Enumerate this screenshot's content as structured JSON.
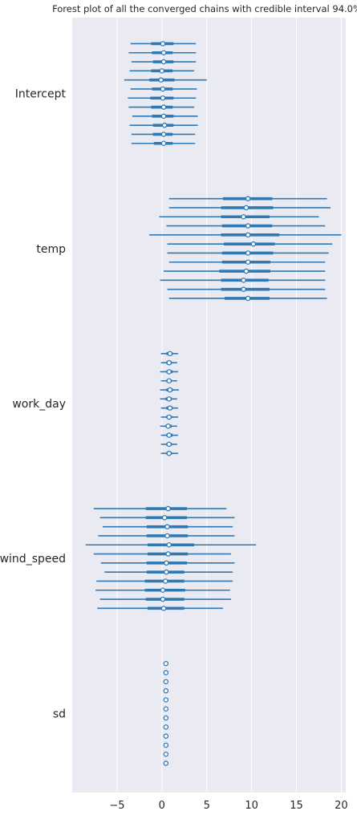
{
  "chart_data": {
    "type": "forest",
    "title": "Forest plot of all the converged chains with credible interval 94.0%",
    "xlabel": "",
    "ylabel": "",
    "xlim": [
      -10,
      20.5
    ],
    "xticks": [
      -5,
      0,
      5,
      10,
      15,
      20
    ],
    "xtick_labels": [
      "−5",
      "0",
      "5",
      "10",
      "15",
      "20"
    ],
    "grid": true,
    "colors": {
      "line": "#2f7ab4",
      "marker_fill": "#ffffff",
      "background": "#eaeaf2",
      "grid": "#ffffff"
    },
    "variables": [
      {
        "name": "Intercept",
        "chains": [
          {
            "hdi94": [
              -3.5,
              3.8
            ],
            "iqr": [
              -1.2,
              1.3
            ],
            "median": 0.1
          },
          {
            "hdi94": [
              -3.7,
              3.8
            ],
            "iqr": [
              -1.1,
              1.2
            ],
            "median": 0.2
          },
          {
            "hdi94": [
              -3.4,
              3.8
            ],
            "iqr": [
              -1.0,
              1.3
            ],
            "median": 0.2
          },
          {
            "hdi94": [
              -3.6,
              3.6
            ],
            "iqr": [
              -1.2,
              1.2
            ],
            "median": 0.0
          },
          {
            "hdi94": [
              -4.2,
              5.0
            ],
            "iqr": [
              -1.4,
              1.4
            ],
            "median": -0.1
          },
          {
            "hdi94": [
              -3.5,
              3.9
            ],
            "iqr": [
              -1.1,
              1.2
            ],
            "median": 0.1
          },
          {
            "hdi94": [
              -3.8,
              3.8
            ],
            "iqr": [
              -1.3,
              1.3
            ],
            "median": 0.1
          },
          {
            "hdi94": [
              -3.7,
              3.6
            ],
            "iqr": [
              -1.2,
              1.2
            ],
            "median": 0.2
          },
          {
            "hdi94": [
              -3.3,
              4.0
            ],
            "iqr": [
              -1.1,
              1.3
            ],
            "median": 0.2
          },
          {
            "hdi94": [
              -3.6,
              4.0
            ],
            "iqr": [
              -1.0,
              1.3
            ],
            "median": 0.3
          },
          {
            "hdi94": [
              -3.4,
              3.7
            ],
            "iqr": [
              -1.0,
              1.2
            ],
            "median": 0.2
          },
          {
            "hdi94": [
              -3.4,
              3.7
            ],
            "iqr": [
              -0.9,
              1.2
            ],
            "median": 0.2
          }
        ]
      },
      {
        "name": "temp",
        "chains": [
          {
            "hdi94": [
              0.8,
              18.4
            ],
            "iqr": [
              6.8,
              12.3
            ],
            "median": 9.6
          },
          {
            "hdi94": [
              0.8,
              18.8
            ],
            "iqr": [
              6.6,
              12.4
            ],
            "median": 9.4
          },
          {
            "hdi94": [
              -0.3,
              17.5
            ],
            "iqr": [
              6.6,
              12.0
            ],
            "median": 9.1
          },
          {
            "hdi94": [
              0.5,
              18.2
            ],
            "iqr": [
              6.7,
              12.3
            ],
            "median": 9.6
          },
          {
            "hdi94": [
              -1.4,
              20.0
            ],
            "iqr": [
              6.6,
              13.1
            ],
            "median": 9.6
          },
          {
            "hdi94": [
              0.6,
              19.0
            ],
            "iqr": [
              6.9,
              12.6
            ],
            "median": 10.2
          },
          {
            "hdi94": [
              0.6,
              18.6
            ],
            "iqr": [
              6.7,
              12.4
            ],
            "median": 9.6
          },
          {
            "hdi94": [
              0.8,
              18.2
            ],
            "iqr": [
              6.7,
              12.1
            ],
            "median": 9.6
          },
          {
            "hdi94": [
              0.2,
              18.2
            ],
            "iqr": [
              6.4,
              12.1
            ],
            "median": 9.4
          },
          {
            "hdi94": [
              -0.2,
              18.2
            ],
            "iqr": [
              6.6,
              11.9
            ],
            "median": 9.1
          },
          {
            "hdi94": [
              0.6,
              18.2
            ],
            "iqr": [
              6.6,
              12.0
            ],
            "median": 9.1
          },
          {
            "hdi94": [
              0.8,
              18.4
            ],
            "iqr": [
              7.0,
              12.0
            ],
            "median": 9.6
          }
        ]
      },
      {
        "name": "work_day",
        "chains": [
          {
            "hdi94": [
              -0.1,
              1.8
            ],
            "iqr": [
              0.5,
              1.2
            ],
            "median": 0.9
          },
          {
            "hdi94": [
              -0.1,
              1.7
            ],
            "iqr": [
              0.5,
              1.1
            ],
            "median": 0.8
          },
          {
            "hdi94": [
              -0.2,
              1.8
            ],
            "iqr": [
              0.5,
              1.2
            ],
            "median": 0.8
          },
          {
            "hdi94": [
              -0.1,
              1.7
            ],
            "iqr": [
              0.5,
              1.1
            ],
            "median": 0.8
          },
          {
            "hdi94": [
              -0.2,
              1.9
            ],
            "iqr": [
              0.5,
              1.2
            ],
            "median": 0.9
          },
          {
            "hdi94": [
              -0.2,
              1.7
            ],
            "iqr": [
              0.4,
              1.1
            ],
            "median": 0.8
          },
          {
            "hdi94": [
              -0.1,
              1.8
            ],
            "iqr": [
              0.5,
              1.2
            ],
            "median": 0.9
          },
          {
            "hdi94": [
              -0.1,
              1.8
            ],
            "iqr": [
              0.5,
              1.1
            ],
            "median": 0.8
          },
          {
            "hdi94": [
              -0.2,
              1.7
            ],
            "iqr": [
              0.4,
              1.1
            ],
            "median": 0.7
          },
          {
            "hdi94": [
              -0.1,
              1.8
            ],
            "iqr": [
              0.5,
              1.2
            ],
            "median": 0.8
          },
          {
            "hdi94": [
              -0.1,
              1.7
            ],
            "iqr": [
              0.5,
              1.1
            ],
            "median": 0.8
          },
          {
            "hdi94": [
              -0.1,
              1.8
            ],
            "iqr": [
              0.5,
              1.1
            ],
            "median": 0.8
          }
        ]
      },
      {
        "name": "wind_speed",
        "chains": [
          {
            "hdi94": [
              -7.6,
              7.2
            ],
            "iqr": [
              -1.8,
              2.8
            ],
            "median": 0.7
          },
          {
            "hdi94": [
              -6.9,
              8.1
            ],
            "iqr": [
              -1.8,
              2.8
            ],
            "median": 0.3
          },
          {
            "hdi94": [
              -6.6,
              7.9
            ],
            "iqr": [
              -1.7,
              2.9
            ],
            "median": 0.6
          },
          {
            "hdi94": [
              -7.1,
              8.1
            ],
            "iqr": [
              -1.7,
              2.9
            ],
            "median": 0.6
          },
          {
            "hdi94": [
              -8.5,
              10.5
            ],
            "iqr": [
              -1.6,
              3.6
            ],
            "median": 0.8
          },
          {
            "hdi94": [
              -7.6,
              7.7
            ],
            "iqr": [
              -1.6,
              2.9
            ],
            "median": 0.7
          },
          {
            "hdi94": [
              -6.8,
              8.1
            ],
            "iqr": [
              -1.7,
              2.8
            ],
            "median": 0.5
          },
          {
            "hdi94": [
              -6.4,
              7.9
            ],
            "iqr": [
              -1.7,
              2.5
            ],
            "median": 0.5
          },
          {
            "hdi94": [
              -7.3,
              7.9
            ],
            "iqr": [
              -1.9,
              2.5
            ],
            "median": 0.4
          },
          {
            "hdi94": [
              -7.4,
              7.6
            ],
            "iqr": [
              -1.9,
              2.6
            ],
            "median": 0.1
          },
          {
            "hdi94": [
              -6.9,
              7.7
            ],
            "iqr": [
              -1.8,
              2.5
            ],
            "median": 0.1
          },
          {
            "hdi94": [
              -7.2,
              6.8
            ],
            "iqr": [
              -1.6,
              2.5
            ],
            "median": 0.2
          }
        ]
      },
      {
        "name": "sd",
        "chains": [
          {
            "hdi94": [
              0.35,
              0.55
            ],
            "iqr": [
              0.4,
              0.5
            ],
            "median": 0.45
          },
          {
            "hdi94": [
              0.35,
              0.55
            ],
            "iqr": [
              0.4,
              0.5
            ],
            "median": 0.45
          },
          {
            "hdi94": [
              0.35,
              0.55
            ],
            "iqr": [
              0.4,
              0.5
            ],
            "median": 0.45
          },
          {
            "hdi94": [
              0.35,
              0.55
            ],
            "iqr": [
              0.4,
              0.5
            ],
            "median": 0.45
          },
          {
            "hdi94": [
              0.35,
              0.55
            ],
            "iqr": [
              0.4,
              0.5
            ],
            "median": 0.45
          },
          {
            "hdi94": [
              0.35,
              0.55
            ],
            "iqr": [
              0.4,
              0.5
            ],
            "median": 0.45
          },
          {
            "hdi94": [
              0.35,
              0.55
            ],
            "iqr": [
              0.4,
              0.5
            ],
            "median": 0.45
          },
          {
            "hdi94": [
              0.35,
              0.55
            ],
            "iqr": [
              0.4,
              0.5
            ],
            "median": 0.45
          },
          {
            "hdi94": [
              0.35,
              0.55
            ],
            "iqr": [
              0.4,
              0.5
            ],
            "median": 0.45
          },
          {
            "hdi94": [
              0.35,
              0.55
            ],
            "iqr": [
              0.4,
              0.5
            ],
            "median": 0.45
          },
          {
            "hdi94": [
              0.35,
              0.55
            ],
            "iqr": [
              0.4,
              0.5
            ],
            "median": 0.45
          },
          {
            "hdi94": [
              0.35,
              0.55
            ],
            "iqr": [
              0.4,
              0.5
            ],
            "median": 0.45
          }
        ]
      }
    ]
  }
}
